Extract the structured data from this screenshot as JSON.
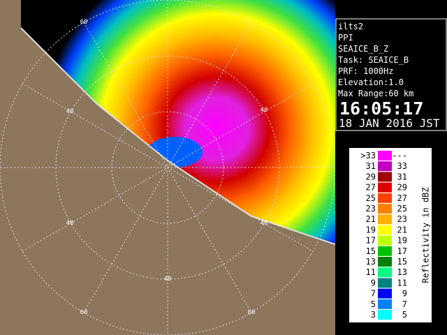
{
  "info": {
    "lines": [
      "ilts2",
      "PPI",
      "SEAICE_B_Z",
      "Task: SEAICE_B",
      "PRF: 1000Hz",
      "Elevation:1.0",
      "Max Range:60 km"
    ],
    "time": "16:05:17",
    "date": "18 JAN 2016 JST"
  },
  "legend": {
    "title": "Reflectivity in dBZ",
    "rows": [
      {
        "low": ">33",
        "high": "---",
        "color": "#ff00ff"
      },
      {
        "low": "31",
        "high": "33",
        "color": "#c000c0"
      },
      {
        "low": "29",
        "high": "31",
        "color": "#a00000"
      },
      {
        "low": "27",
        "high": "29",
        "color": "#e00000"
      },
      {
        "low": "25",
        "high": "27",
        "color": "#ff4000"
      },
      {
        "low": "23",
        "high": "25",
        "color": "#ff8000"
      },
      {
        "low": "21",
        "high": "23",
        "color": "#ffb000"
      },
      {
        "low": "19",
        "high": "21",
        "color": "#ffff00"
      },
      {
        "low": "17",
        "high": "19",
        "color": "#c0ff00"
      },
      {
        "low": "15",
        "high": "17",
        "color": "#00c000"
      },
      {
        "low": "13",
        "high": "15",
        "color": "#008000"
      },
      {
        "low": "11",
        "high": "13",
        "color": "#00ff80"
      },
      {
        "low": "9",
        "high": "11",
        "color": "#008080"
      },
      {
        "low": "7",
        "high": "9",
        "color": "#0000ff"
      },
      {
        "low": "5",
        "high": "7",
        "color": "#0080ff"
      },
      {
        "low": "3",
        "high": "5",
        "color": "#00ffff"
      }
    ]
  },
  "map": {
    "ring_labels": [
      "60",
      "40",
      "40",
      "40",
      "40",
      "40",
      "60",
      "60"
    ]
  }
}
